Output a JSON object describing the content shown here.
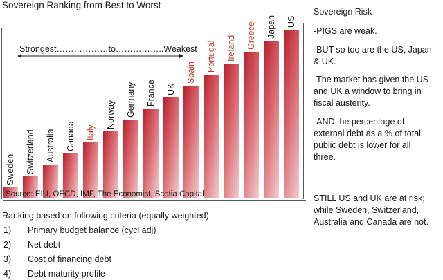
{
  "chart_data": {
    "type": "bar",
    "title": "Sovereign Ranking from Best to Worst",
    "categories": [
      "Sweden",
      "Switzerland",
      "Australia",
      "Canada",
      "Italy",
      "Norway",
      "Germany",
      "France",
      "UK",
      "Spain",
      "Portugal",
      "Ireland",
      "Greece",
      "Japan",
      "US"
    ],
    "values": [
      1,
      2,
      3,
      4,
      5,
      6,
      7,
      8,
      9,
      10,
      11,
      12,
      13,
      14,
      15
    ],
    "highlighted": [
      "Italy",
      "Spain",
      "Portugal",
      "Ireland",
      "Greece"
    ],
    "annotation": "Strongest………………to……………..Weakest",
    "source": "Source: EIU, OECD, IMF, The Economist, Scotia Capital",
    "bar_color": "#b8202c",
    "highlight_label_color": "#c0392b",
    "grid": false,
    "xlabel": "",
    "ylabel": ""
  },
  "sidebar": {
    "title": "Sovereign Risk",
    "paragraphs": [
      [
        "-PIGS are weak."
      ],
      [
        "-BUT so too are the US, Japan",
        "& UK."
      ],
      [
        "-The market has given the US",
        "and UK a window to bring in",
        "fiscal austerity."
      ],
      [
        "-AND the percentage of",
        "external debt as a % of total",
        "public debt is lower for all",
        "three."
      ],
      [
        "STILL US and UK are at risk;",
        "while Sweden, Switzerland,",
        "Australia and Canada are not."
      ]
    ]
  },
  "criteria": {
    "heading": "Ranking based on following criteria (equally weighted)",
    "items": [
      {
        "num": "1)",
        "text": "Primary budget balance (cycl adj)"
      },
      {
        "num": "2)",
        "text": "Net debt"
      },
      {
        "num": "3)",
        "text": "Cost of financing debt"
      },
      {
        "num": "4)",
        "text": "Debt maturity profile"
      }
    ]
  }
}
